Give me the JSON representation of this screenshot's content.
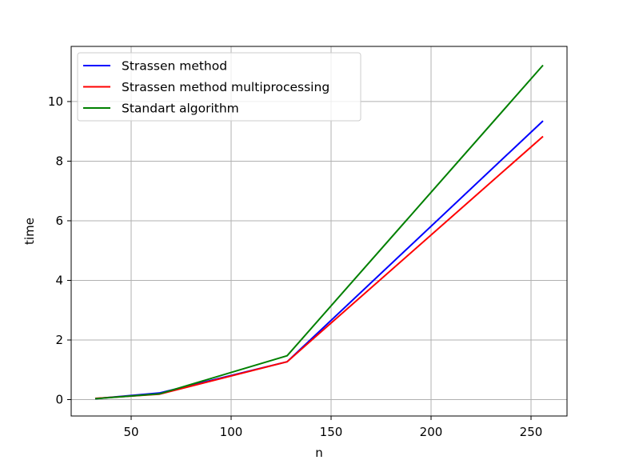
{
  "chart_data": {
    "type": "line",
    "title": "",
    "xlabel": "n",
    "ylabel": "time",
    "xlim": [
      20,
      268
    ],
    "ylim": [
      -0.55,
      11.85
    ],
    "xticks": [
      50,
      100,
      150,
      200,
      250
    ],
    "yticks": [
      0,
      2,
      4,
      6,
      8,
      10
    ],
    "grid": true,
    "legend_position": "top-left",
    "series": [
      {
        "name": "Strassen method",
        "color": "#0000ff",
        "x": [
          32,
          64,
          128,
          256
        ],
        "y": [
          0.03,
          0.22,
          1.27,
          9.35
        ]
      },
      {
        "name": "Strassen method multiprocessing",
        "color": "#ff0000",
        "x": [
          32,
          64,
          128,
          256
        ],
        "y": [
          0.04,
          0.18,
          1.27,
          8.83
        ]
      },
      {
        "name": "Standart algorithm",
        "color": "#008000",
        "x": [
          32,
          64,
          128,
          256
        ],
        "y": [
          0.03,
          0.19,
          1.47,
          11.22
        ]
      }
    ]
  }
}
